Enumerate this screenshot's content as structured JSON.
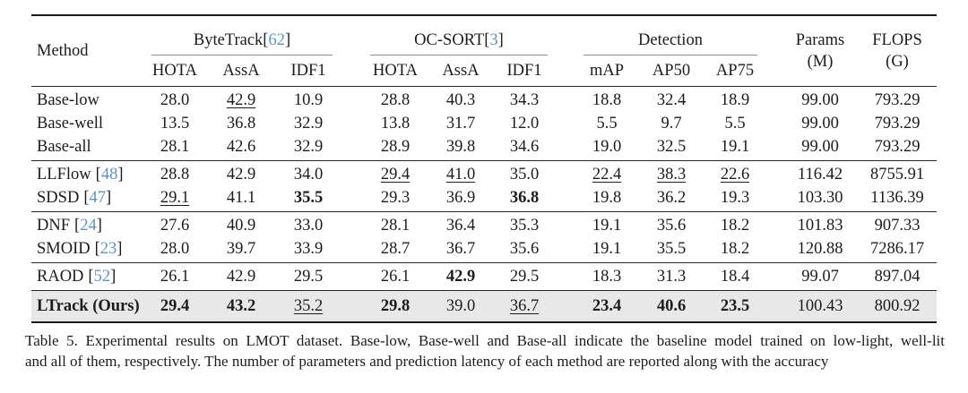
{
  "punct": {
    "open": "[",
    "close": "]"
  },
  "accent": {
    "cite_color": "#5f93c3",
    "highlight_row_bg": "#e8e8e8"
  },
  "header": {
    "method": "Method",
    "groups": [
      {
        "name": "ByteTrack",
        "cite": "62",
        "subs": [
          "HOTA",
          "AssA",
          "IDF1"
        ]
      },
      {
        "name": "OC-SORT",
        "cite": "3",
        "subs": [
          "HOTA",
          "AssA",
          "IDF1"
        ]
      },
      {
        "name": "Detection",
        "subs": [
          "mAP",
          "AP50",
          "AP75"
        ]
      }
    ],
    "params_line1": "Params",
    "params_line2": "(M)",
    "flops_line1": "FLOPS",
    "flops_line2": "(G)"
  },
  "rows": [
    {
      "method": "Base-low",
      "values": [
        "28.0",
        "42.9",
        "10.9",
        "28.8",
        "40.3",
        "34.3",
        "18.8",
        "32.4",
        "18.9",
        "99.00",
        "793.29"
      ]
    },
    {
      "method": "Base-well",
      "values": [
        "13.5",
        "36.8",
        "32.9",
        "13.8",
        "31.7",
        "12.0",
        "5.5",
        "9.7",
        "5.5",
        "99.00",
        "793.29"
      ]
    },
    {
      "method": "Base-all",
      "values": [
        "28.1",
        "42.6",
        "32.9",
        "28.9",
        "39.8",
        "34.6",
        "19.0",
        "32.5",
        "19.1",
        "99.00",
        "793.29"
      ]
    },
    {
      "method": "LLFlow",
      "cite": "48",
      "values": [
        "28.8",
        "42.9",
        "34.0",
        "29.4",
        "41.0",
        "35.0",
        "22.4",
        "38.3",
        "22.6",
        "116.42",
        "8755.91"
      ]
    },
    {
      "method": "SDSD",
      "cite": "47",
      "values": [
        "29.1",
        "41.1",
        "35.5",
        "29.3",
        "36.9",
        "36.8",
        "19.8",
        "36.2",
        "19.3",
        "103.30",
        "1136.39"
      ]
    },
    {
      "method": "DNF",
      "cite": "24",
      "values": [
        "27.6",
        "40.9",
        "33.0",
        "28.1",
        "36.4",
        "35.3",
        "19.1",
        "35.6",
        "18.2",
        "101.83",
        "907.33"
      ]
    },
    {
      "method": "SMOID",
      "cite": "23",
      "values": [
        "28.0",
        "39.7",
        "33.9",
        "28.7",
        "36.7",
        "35.6",
        "19.1",
        "35.5",
        "18.2",
        "120.88",
        "7286.17"
      ]
    },
    {
      "method": "RAOD",
      "cite": "52",
      "values": [
        "26.1",
        "42.9",
        "29.5",
        "26.1",
        "42.9",
        "29.5",
        "18.3",
        "31.3",
        "18.4",
        "99.07",
        "897.04"
      ]
    },
    {
      "method": "LTrack (Ours)",
      "values": [
        "29.4",
        "43.2",
        "35.2",
        "29.8",
        "39.0",
        "36.7",
        "23.4",
        "40.6",
        "23.5",
        "100.43",
        "800.92"
      ]
    }
  ],
  "caption": {
    "line1": "Table 5. Experimental results on LMOT dataset. Base-low, Base-well and Base-all indicate the baseline model trained on low-light, well-lit",
    "line2": "and all of them, respectively. The number of parameters and prediction latency of each method are reported along with the accuracy"
  }
}
